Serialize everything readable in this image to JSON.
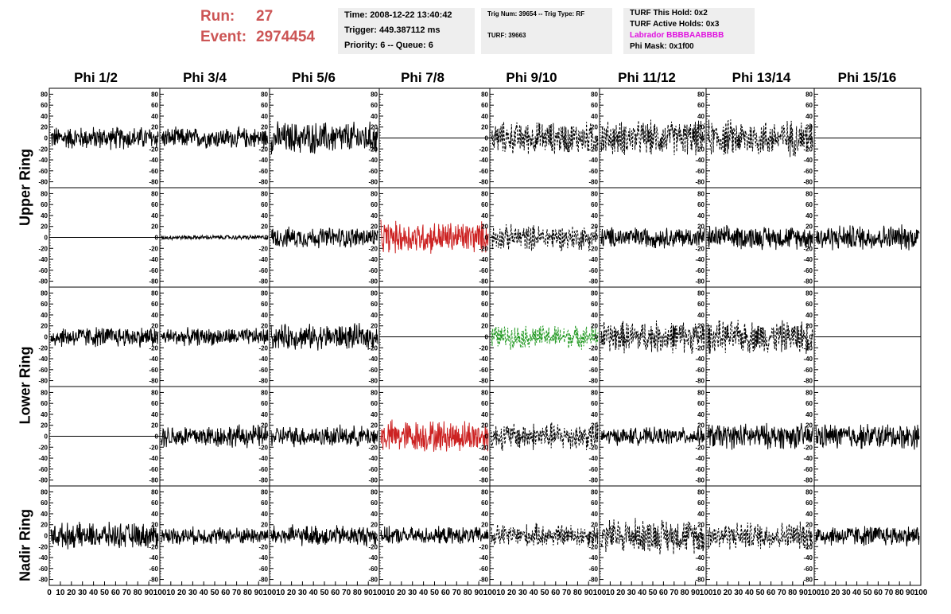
{
  "run_label": "Run:",
  "run_value": "27",
  "event_label": "Event:",
  "event_value": "2974454",
  "info_time": "Time: 2008-12-22 13:40:42",
  "info_trigger": "Trigger: 449.387112 ms",
  "info_priority": "Priority: 6 -- Queue: 6",
  "info_trig": "Trig Num: 39654 -- Trig Type: RF",
  "info_turf": "TURF: 39663",
  "info_hold": "TURF This Hold: 0x2",
  "info_active": "TURF Active Holds: 0x3",
  "info_labrador": "Labrador BBBBAABBBB",
  "info_phimask": "Phi Mask: 0x1f00",
  "columns": [
    "Phi 1/2",
    "Phi 3/4",
    "Phi 5/6",
    "Phi 7/8",
    "Phi 9/10",
    "Phi 11/12",
    "Phi 13/14",
    "Phi 15/16"
  ],
  "rings": [
    "Upper Ring",
    "Lower Ring",
    "Nadir Ring"
  ],
  "colors": {
    "header_red": "#cc5555",
    "trace_black": "#000000",
    "trace_red": "#cc2222",
    "trace_green": "#229922",
    "label_magenta": "#e010e0",
    "info_bg": "#eeeeee"
  },
  "chart_data": {
    "type": "line",
    "ylim": [
      -85,
      85
    ],
    "xlim": [
      0,
      100
    ],
    "yticks": [
      -80,
      -60,
      -40,
      -20,
      0,
      20,
      40,
      60,
      80
    ],
    "xticks": [
      0,
      10,
      20,
      30,
      40,
      50,
      60,
      70,
      80,
      90,
      100
    ],
    "grid": false,
    "panels": [
      [
        "solid:20",
        "solid:18",
        "solid:28",
        "flat",
        "dashed:28",
        "dashed:30",
        "dashed:32",
        "flat"
      ],
      [
        "flat",
        "solid:4",
        "solid:18",
        "red:28",
        "dashed:22",
        "solid:18",
        "solid:20",
        "solid:22"
      ],
      [
        "solid:18",
        "solid:15",
        "solid:22",
        "flat",
        "green:20",
        "dashed:28",
        "dashed:28",
        "flat"
      ],
      [
        "flat",
        "solid:20",
        "solid:18",
        "red:28",
        "dashed:24",
        "solid:15",
        "solid:22",
        "solid:22"
      ],
      [
        "solid:22",
        "solid:15",
        "solid:18",
        "solid:15",
        "dashed:20",
        "dashed:30",
        "dashed:24",
        "solid:18"
      ]
    ]
  }
}
